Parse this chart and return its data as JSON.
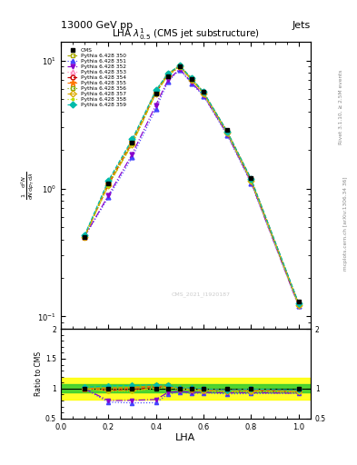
{
  "title_top": "13000 GeV pp",
  "title_right": "Jets",
  "plot_title": "LHA $\\lambda^{1}_{0.5}$ (CMS jet substructure)",
  "xlabel": "LHA",
  "ylabel_main_parts": [
    "mathrm d$^2$N",
    "1",
    "mathrm d $p_T$ mathrm d lambda",
    "mathrm d$N$"
  ],
  "ylabel_ratio": "Ratio to CMS",
  "right_label": "mcplots.cern.ch [arXiv:1306.34 36]",
  "right_label2": "Rivet 3.1.10, ≥ 2.5M events",
  "watermark": "CMS_2021_I1920187",
  "xdata": [
    0.1,
    0.2,
    0.3,
    0.4,
    0.45,
    0.5,
    0.55,
    0.6,
    0.7,
    0.8,
    1.0
  ],
  "cms_y": [
    0.42,
    1.1,
    2.3,
    5.5,
    7.5,
    9.0,
    7.2,
    5.7,
    2.85,
    1.2,
    0.13
  ],
  "pythia_350_y": [
    0.42,
    1.12,
    2.35,
    5.8,
    7.9,
    9.1,
    7.25,
    5.65,
    2.75,
    1.18,
    0.125
  ],
  "pythia_351_y": [
    0.42,
    0.85,
    1.75,
    4.2,
    6.8,
    8.5,
    6.6,
    5.3,
    2.6,
    1.1,
    0.12
  ],
  "pythia_352_y": [
    0.42,
    0.88,
    1.85,
    4.5,
    7.0,
    8.6,
    6.75,
    5.35,
    2.65,
    1.12,
    0.12
  ],
  "pythia_353_y": [
    0.42,
    1.08,
    2.28,
    5.65,
    7.75,
    9.05,
    7.15,
    5.6,
    2.78,
    1.17,
    0.125
  ],
  "pythia_354_y": [
    0.42,
    1.07,
    2.27,
    5.62,
    7.72,
    9.02,
    7.12,
    5.58,
    2.76,
    1.16,
    0.124
  ],
  "pythia_355_y": [
    0.42,
    1.1,
    2.32,
    5.75,
    7.82,
    9.08,
    7.2,
    5.62,
    2.78,
    1.18,
    0.125
  ],
  "pythia_356_y": [
    0.42,
    1.09,
    2.3,
    5.72,
    7.78,
    9.05,
    7.17,
    5.6,
    2.77,
    1.17,
    0.125
  ],
  "pythia_357_y": [
    0.42,
    1.06,
    2.22,
    5.55,
    7.65,
    8.95,
    7.08,
    5.5,
    2.72,
    1.15,
    0.123
  ],
  "pythia_358_y": [
    0.42,
    1.05,
    2.2,
    5.52,
    7.62,
    8.92,
    7.05,
    5.48,
    2.7,
    1.14,
    0.122
  ],
  "pythia_359_y": [
    0.43,
    1.15,
    2.42,
    5.85,
    7.92,
    9.12,
    7.28,
    5.68,
    2.78,
    1.19,
    0.127
  ],
  "series": [
    {
      "label": "Pythia 6.428 350",
      "color": "#aaaa00",
      "linestyle": "--",
      "marker": "s",
      "filled": false
    },
    {
      "label": "Pythia 6.428 351",
      "color": "#4444ff",
      "linestyle": ":",
      "marker": "^",
      "filled": true
    },
    {
      "label": "Pythia 6.428 352",
      "color": "#8800cc",
      "linestyle": "-.",
      "marker": "v",
      "filled": true
    },
    {
      "label": "Pythia 6.428 353",
      "color": "#ff88bb",
      "linestyle": ":",
      "marker": "^",
      "filled": false
    },
    {
      "label": "Pythia 6.428 354",
      "color": "#cc0000",
      "linestyle": "--",
      "marker": "o",
      "filled": false
    },
    {
      "label": "Pythia 6.428 355",
      "color": "#ff7700",
      "linestyle": "--",
      "marker": "*",
      "filled": true
    },
    {
      "label": "Pythia 6.428 356",
      "color": "#88aa00",
      "linestyle": ":",
      "marker": "s",
      "filled": false
    },
    {
      "label": "Pythia 6.428 357",
      "color": "#ddaa00",
      "linestyle": "-.",
      "marker": "D",
      "filled": false
    },
    {
      "label": "Pythia 6.428 358",
      "color": "#bbdd00",
      "linestyle": ":",
      "marker": ".",
      "filled": true
    },
    {
      "label": "Pythia 6.428 359",
      "color": "#00bbaa",
      "linestyle": "--",
      "marker": "D",
      "filled": true
    }
  ],
  "ratio_band_yellow_lo": 0.82,
  "ratio_band_yellow_hi": 1.18,
  "ratio_band_green_lo": 0.93,
  "ratio_band_green_hi": 1.07,
  "ylim_main_lo": 0.08,
  "ylim_main_hi": 14.0,
  "ylim_ratio_lo": 0.5,
  "ylim_ratio_hi": 2.0,
  "xlim_lo": 0.0,
  "xlim_hi": 1.05
}
